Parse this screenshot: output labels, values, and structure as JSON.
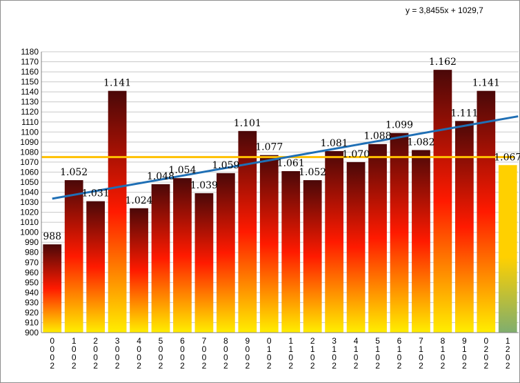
{
  "chart_data": {
    "type": "bar",
    "title": "",
    "xlabel": "",
    "ylabel": "",
    "ylim": [
      900,
      1180
    ],
    "ytick_step": 10,
    "grid": true,
    "categories": [
      "2000",
      "2001",
      "2002",
      "2003",
      "2004",
      "2005",
      "2006",
      "2007",
      "2008",
      "2009",
      "2010",
      "2011",
      "2012",
      "2013",
      "2014",
      "2015",
      "2016",
      "2017",
      "2018",
      "2019",
      "2020",
      "2021"
    ],
    "values": [
      988,
      1052,
      1031,
      1141,
      1024,
      1048,
      1054,
      1039,
      1059,
      1101,
      1077,
      1061,
      1052,
      1081,
      1070,
      1088,
      1099,
      1082,
      1162,
      1111,
      1141,
      1067
    ],
    "data_labels": [
      "988",
      "1.052",
      "1.031",
      "1.141",
      "1.024",
      "1.048",
      "1.054",
      "1.039",
      "1.059",
      "1.101",
      "1.077",
      "1.061",
      "1.052",
      "1.081",
      "1.070",
      "1.088",
      "1.099",
      "1.082",
      "1.162",
      "1.111",
      "1.141",
      "1.067"
    ],
    "tick_labels": [
      [
        "0",
        "0",
        "0",
        "2"
      ],
      [
        "1",
        "0",
        "0",
        "2"
      ],
      [
        "2",
        "0",
        "0",
        "2"
      ],
      [
        "3",
        "0",
        "0",
        "2"
      ],
      [
        "4",
        "0",
        "0",
        "2"
      ],
      [
        "5",
        "0",
        "0",
        "2"
      ],
      [
        "6",
        "0",
        "0",
        "2"
      ],
      [
        "7",
        "0",
        "0",
        "2"
      ],
      [
        "8",
        "0",
        "0",
        "2"
      ],
      [
        "9",
        "0",
        "0",
        "2"
      ],
      [
        "0",
        "1",
        "0",
        "2"
      ],
      [
        "1",
        "1",
        "0",
        "2"
      ],
      [
        "2",
        "1",
        "0",
        "2"
      ],
      [
        "3",
        "1",
        "0",
        "2"
      ],
      [
        "4",
        "1",
        "0",
        "2"
      ],
      [
        "5",
        "1",
        "0",
        "2"
      ],
      [
        "6",
        "1",
        "0",
        "2"
      ],
      [
        "7",
        "1",
        "0",
        "2"
      ],
      [
        "8",
        "1",
        "0",
        "2"
      ],
      [
        "9",
        "1",
        "0",
        "2"
      ],
      [
        "0",
        "2",
        "0",
        "2"
      ],
      [
        "1",
        "2",
        "0",
        "2"
      ]
    ],
    "average_line": {
      "value": 1075,
      "color": "#ffc000"
    },
    "trendline": {
      "slope": 3.8455,
      "intercept": 1029.7,
      "equation": "y = 3,8455x + 1029,7",
      "color": "#1f6fb5"
    },
    "colors": {
      "bar_top": "#4a0808",
      "bar_mid": "#ff1a00",
      "bar_bottom": "#ffee00",
      "last_bar_top": "#ffd000",
      "last_bar_bottom": "#7fae6e",
      "grid": "#c8c8c8"
    }
  }
}
